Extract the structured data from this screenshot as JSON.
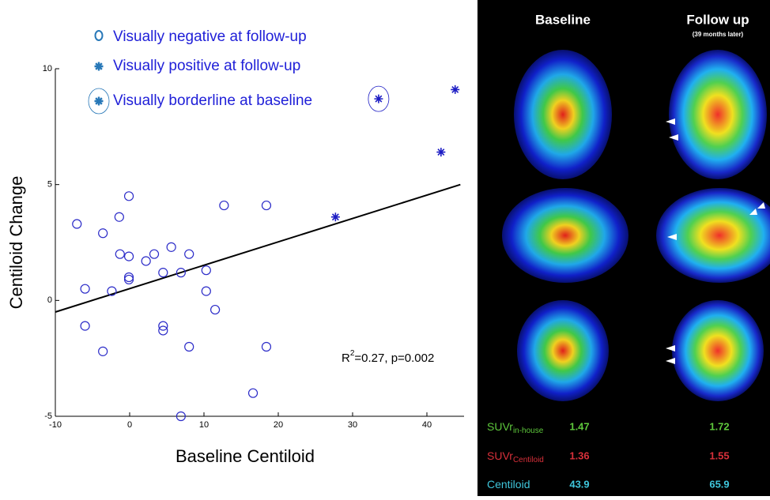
{
  "chart_data": {
    "type": "scatter",
    "xlabel": "Baseline Centiloid",
    "ylabel": "Centiloid Change",
    "xlim": [
      -10,
      45
    ],
    "ylim": [
      -5,
      10
    ],
    "xticks": [
      -10,
      0,
      10,
      20,
      30,
      40
    ],
    "yticks": [
      -5,
      0,
      5,
      10
    ],
    "series": [
      {
        "name": "Visually negative at follow-up",
        "marker": "circle",
        "color": "#2b2bc8",
        "x": [
          -7.1,
          -6.0,
          -6.0,
          -3.6,
          -3.6,
          -2.4,
          -1.4,
          -1.3,
          -0.1,
          -0.1,
          -0.1,
          -0.1,
          2.2,
          3.3,
          4.5,
          4.5,
          4.5,
          5.6,
          6.9,
          6.9,
          8.0,
          8.0,
          10.3,
          10.3,
          11.5,
          12.7,
          16.6,
          18.4,
          18.4
        ],
        "values": [
          3.3,
          0.5,
          -1.1,
          2.9,
          -2.2,
          0.4,
          3.6,
          2.0,
          4.5,
          1.9,
          1.0,
          0.9,
          1.7,
          2.0,
          1.2,
          -1.1,
          -1.3,
          2.3,
          1.2,
          -5.0,
          2.0,
          -2.0,
          1.3,
          0.4,
          -0.4,
          4.1,
          -4.0,
          4.1,
          -2.0
        ]
      },
      {
        "name": "Visually positive at follow-up",
        "marker": "asterisk",
        "color": "#1c1cc4",
        "x": [
          27.7,
          41.9,
          43.8
        ],
        "values": [
          3.6,
          6.4,
          9.1
        ]
      },
      {
        "name": "Visually borderline at baseline",
        "marker": "asterisk-ring",
        "color": "#1c1cc4",
        "x": [
          33.5
        ],
        "values": [
          8.7
        ]
      }
    ],
    "fit_line": {
      "x": [
        -10,
        44.5
      ],
      "values": [
        -0.5,
        5.0
      ],
      "color": "#000000"
    },
    "annotation": {
      "base": "R",
      "sup": "2",
      "rest": "=0.27, p=0.002"
    }
  },
  "pet_panel": {
    "columns": [
      {
        "title": "Baseline"
      },
      {
        "title": "Follow up",
        "subtitle": "(39 months later)"
      }
    ],
    "rows": [
      {
        "label": "SUVr",
        "sub": "in-house",
        "color": "#5ec83c",
        "values": [
          "1.47",
          "1.72"
        ]
      },
      {
        "label": "SUVr",
        "sub": "Centiloid",
        "color": "#d8303a",
        "values": [
          "1.36",
          "1.55"
        ]
      },
      {
        "label": "Centiloid",
        "sub": null,
        "color": "#3fc6dc",
        "values": [
          "43.9",
          "65.9"
        ]
      }
    ]
  }
}
